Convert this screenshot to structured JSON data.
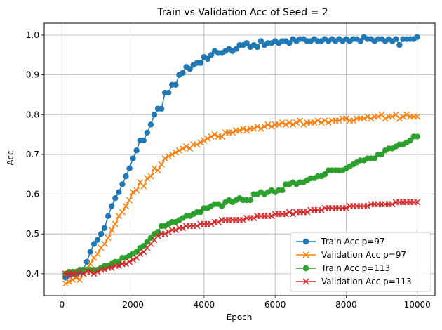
{
  "chart_data": {
    "type": "line",
    "title": "Train vs Validation Acc of Seed = 2",
    "xlabel": "Epoch",
    "ylabel": "Acc",
    "xlim": [
      -500,
      10500
    ],
    "ylim": [
      0.345,
      1.03
    ],
    "xticks": [
      0,
      2000,
      4000,
      6000,
      8000,
      10000
    ],
    "xtick_labels": [
      "0",
      "2000",
      "4000",
      "6000",
      "8000",
      "10000"
    ],
    "yticks": [
      0.4,
      0.5,
      0.6,
      0.7,
      0.8,
      0.9,
      1.0
    ],
    "ytick_labels": [
      "0.4",
      "0.5",
      "0.6",
      "0.7",
      "0.8",
      "0.9",
      "1.0"
    ],
    "grid": true,
    "legend_position": "lower-right",
    "series": [
      {
        "name": "Train Acc p=97",
        "color": "#1f77b4",
        "marker": "circle",
        "x": [
          100,
          200,
          300,
          400,
          500,
          600,
          700,
          800,
          900,
          1000,
          1100,
          1200,
          1300,
          1400,
          1500,
          1600,
          1700,
          1800,
          1900,
          2000,
          2100,
          2200,
          2300,
          2400,
          2500,
          2600,
          2700,
          2800,
          2900,
          3000,
          3100,
          3200,
          3300,
          3400,
          3500,
          3600,
          3700,
          3800,
          3900,
          4000,
          4100,
          4200,
          4300,
          4400,
          4500,
          4600,
          4700,
          4800,
          4900,
          5000,
          5100,
          5200,
          5300,
          5400,
          5500,
          5600,
          5700,
          5800,
          5900,
          6000,
          6100,
          6200,
          6300,
          6400,
          6500,
          6600,
          6700,
          6800,
          6900,
          7000,
          7100,
          7200,
          7300,
          7400,
          7500,
          7600,
          7700,
          7800,
          7900,
          8000,
          8100,
          8200,
          8300,
          8400,
          8500,
          8600,
          8700,
          8800,
          8900,
          9000,
          9100,
          9200,
          9300,
          9400,
          9500,
          9600,
          9700,
          9800,
          9900,
          10000
        ],
        "y": [
          0.39,
          0.395,
          0.4,
          0.4,
          0.405,
          0.41,
          0.43,
          0.455,
          0.475,
          0.485,
          0.5,
          0.515,
          0.545,
          0.57,
          0.59,
          0.605,
          0.625,
          0.645,
          0.665,
          0.69,
          0.71,
          0.735,
          0.735,
          0.755,
          0.775,
          0.8,
          0.815,
          0.815,
          0.855,
          0.855,
          0.875,
          0.875,
          0.9,
          0.905,
          0.92,
          0.915,
          0.925,
          0.93,
          0.93,
          0.945,
          0.94,
          0.95,
          0.96,
          0.955,
          0.955,
          0.96,
          0.965,
          0.96,
          0.965,
          0.975,
          0.975,
          0.98,
          0.97,
          0.975,
          0.97,
          0.985,
          0.975,
          0.98,
          0.98,
          0.985,
          0.98,
          0.985,
          0.985,
          0.98,
          0.99,
          0.985,
          0.99,
          0.99,
          0.985,
          0.985,
          0.99,
          0.985,
          0.985,
          0.99,
          0.985,
          0.99,
          0.985,
          0.99,
          0.985,
          0.99,
          0.985,
          0.99,
          0.99,
          0.985,
          0.995,
          0.99,
          0.99,
          0.985,
          0.99,
          0.99,
          0.985,
          0.99,
          0.985,
          0.99,
          0.975,
          0.99,
          0.99,
          0.99,
          0.99,
          0.995
        ]
      },
      {
        "name": "Validation Acc p=97",
        "color": "#ff7f0e",
        "marker": "x",
        "x": [
          100,
          200,
          300,
          400,
          500,
          600,
          700,
          800,
          900,
          1000,
          1100,
          1200,
          1300,
          1400,
          1500,
          1600,
          1700,
          1800,
          1900,
          2000,
          2100,
          2200,
          2300,
          2400,
          2500,
          2600,
          2700,
          2800,
          2900,
          3000,
          3100,
          3200,
          3300,
          3400,
          3500,
          3600,
          3700,
          3800,
          3900,
          4000,
          4100,
          4200,
          4300,
          4400,
          4500,
          4600,
          4700,
          4800,
          4900,
          5000,
          5100,
          5200,
          5300,
          5400,
          5500,
          5600,
          5700,
          5800,
          5900,
          6000,
          6100,
          6200,
          6300,
          6400,
          6500,
          6600,
          6700,
          6800,
          6900,
          7000,
          7100,
          7200,
          7300,
          7400,
          7500,
          7600,
          7700,
          7800,
          7900,
          8000,
          8100,
          8200,
          8300,
          8400,
          8500,
          8600,
          8700,
          8800,
          8900,
          9000,
          9100,
          9200,
          9300,
          9400,
          9500,
          9600,
          9700,
          9800,
          9900,
          10000
        ],
        "y": [
          0.375,
          0.38,
          0.385,
          0.39,
          0.385,
          0.4,
          0.41,
          0.425,
          0.44,
          0.45,
          0.465,
          0.475,
          0.49,
          0.51,
          0.525,
          0.545,
          0.555,
          0.57,
          0.585,
          0.605,
          0.61,
          0.63,
          0.62,
          0.64,
          0.645,
          0.665,
          0.66,
          0.675,
          0.69,
          0.695,
          0.7,
          0.705,
          0.71,
          0.715,
          0.72,
          0.715,
          0.725,
          0.725,
          0.73,
          0.735,
          0.74,
          0.745,
          0.75,
          0.745,
          0.745,
          0.755,
          0.755,
          0.755,
          0.76,
          0.76,
          0.765,
          0.76,
          0.765,
          0.765,
          0.77,
          0.765,
          0.77,
          0.775,
          0.77,
          0.775,
          0.775,
          0.78,
          0.775,
          0.78,
          0.775,
          0.78,
          0.785,
          0.775,
          0.78,
          0.78,
          0.78,
          0.785,
          0.78,
          0.785,
          0.78,
          0.785,
          0.785,
          0.785,
          0.79,
          0.79,
          0.785,
          0.785,
          0.79,
          0.79,
          0.79,
          0.795,
          0.79,
          0.795,
          0.795,
          0.8,
          0.79,
          0.795,
          0.795,
          0.8,
          0.79,
          0.795,
          0.8,
          0.795,
          0.795,
          0.795
        ]
      },
      {
        "name": "Train Acc p=113",
        "color": "#2ca02c",
        "marker": "circle",
        "x": [
          100,
          200,
          300,
          400,
          500,
          600,
          700,
          800,
          900,
          1000,
          1100,
          1200,
          1300,
          1400,
          1500,
          1600,
          1700,
          1800,
          1900,
          2000,
          2100,
          2200,
          2300,
          2400,
          2500,
          2600,
          2700,
          2800,
          2900,
          3000,
          3100,
          3200,
          3300,
          3400,
          3500,
          3600,
          3700,
          3800,
          3900,
          4000,
          4100,
          4200,
          4300,
          4400,
          4500,
          4600,
          4700,
          4800,
          4900,
          5000,
          5100,
          5200,
          5300,
          5400,
          5500,
          5600,
          5700,
          5800,
          5900,
          6000,
          6100,
          6200,
          6300,
          6400,
          6500,
          6600,
          6700,
          6800,
          6900,
          7000,
          7100,
          7200,
          7300,
          7400,
          7500,
          7600,
          7700,
          7800,
          7900,
          8000,
          8100,
          8200,
          8300,
          8400,
          8500,
          8600,
          8700,
          8800,
          8900,
          9000,
          9100,
          9200,
          9300,
          9400,
          9500,
          9600,
          9700,
          9800,
          9900,
          10000
        ],
        "y": [
          0.4,
          0.405,
          0.405,
          0.405,
          0.41,
          0.41,
          0.41,
          0.41,
          0.41,
          0.41,
          0.415,
          0.42,
          0.42,
          0.425,
          0.43,
          0.43,
          0.44,
          0.44,
          0.445,
          0.45,
          0.455,
          0.465,
          0.47,
          0.48,
          0.49,
          0.5,
          0.505,
          0.52,
          0.52,
          0.525,
          0.53,
          0.53,
          0.535,
          0.54,
          0.545,
          0.545,
          0.55,
          0.555,
          0.555,
          0.565,
          0.565,
          0.57,
          0.575,
          0.575,
          0.57,
          0.58,
          0.585,
          0.58,
          0.585,
          0.59,
          0.585,
          0.585,
          0.585,
          0.6,
          0.6,
          0.605,
          0.6,
          0.605,
          0.61,
          0.605,
          0.61,
          0.61,
          0.625,
          0.625,
          0.63,
          0.625,
          0.63,
          0.63,
          0.635,
          0.64,
          0.64,
          0.645,
          0.645,
          0.65,
          0.66,
          0.66,
          0.66,
          0.66,
          0.66,
          0.665,
          0.67,
          0.675,
          0.68,
          0.685,
          0.685,
          0.69,
          0.69,
          0.69,
          0.7,
          0.7,
          0.71,
          0.715,
          0.715,
          0.72,
          0.725,
          0.725,
          0.73,
          0.735,
          0.745,
          0.745
        ]
      },
      {
        "name": "Validation Acc p=113",
        "color": "#d62728",
        "marker": "x",
        "x": [
          100,
          200,
          300,
          400,
          500,
          600,
          700,
          800,
          900,
          1000,
          1100,
          1200,
          1300,
          1400,
          1500,
          1600,
          1700,
          1800,
          1900,
          2000,
          2100,
          2200,
          2300,
          2400,
          2500,
          2600,
          2700,
          2800,
          2900,
          3000,
          3100,
          3200,
          3300,
          3400,
          3500,
          3600,
          3700,
          3800,
          3900,
          4000,
          4100,
          4200,
          4300,
          4400,
          4500,
          4600,
          4700,
          4800,
          4900,
          5000,
          5100,
          5200,
          5300,
          5400,
          5500,
          5600,
          5700,
          5800,
          5900,
          6000,
          6100,
          6200,
          6300,
          6400,
          6500,
          6600,
          6700,
          6800,
          6900,
          7000,
          7100,
          7200,
          7300,
          7400,
          7500,
          7600,
          7700,
          7800,
          7900,
          8000,
          8100,
          8200,
          8300,
          8400,
          8500,
          8600,
          8700,
          8800,
          8900,
          9000,
          9100,
          9200,
          9300,
          9400,
          9500,
          9600,
          9700,
          9800,
          9900,
          10000
        ],
        "y": [
          0.4,
          0.4,
          0.4,
          0.4,
          0.405,
          0.4,
          0.405,
          0.405,
          0.4,
          0.405,
          0.41,
          0.41,
          0.415,
          0.415,
          0.42,
          0.42,
          0.425,
          0.425,
          0.43,
          0.435,
          0.44,
          0.45,
          0.455,
          0.465,
          0.475,
          0.485,
          0.495,
          0.5,
          0.5,
          0.505,
          0.51,
          0.51,
          0.515,
          0.515,
          0.52,
          0.52,
          0.52,
          0.52,
          0.525,
          0.525,
          0.525,
          0.525,
          0.53,
          0.53,
          0.535,
          0.535,
          0.535,
          0.535,
          0.535,
          0.535,
          0.535,
          0.54,
          0.54,
          0.54,
          0.545,
          0.545,
          0.545,
          0.545,
          0.545,
          0.55,
          0.55,
          0.55,
          0.55,
          0.555,
          0.55,
          0.555,
          0.555,
          0.555,
          0.555,
          0.56,
          0.56,
          0.56,
          0.56,
          0.565,
          0.565,
          0.565,
          0.565,
          0.565,
          0.565,
          0.565,
          0.57,
          0.57,
          0.57,
          0.57,
          0.57,
          0.57,
          0.575,
          0.575,
          0.575,
          0.575,
          0.575,
          0.575,
          0.575,
          0.58,
          0.58,
          0.58,
          0.58,
          0.58,
          0.58,
          0.58
        ]
      }
    ]
  }
}
